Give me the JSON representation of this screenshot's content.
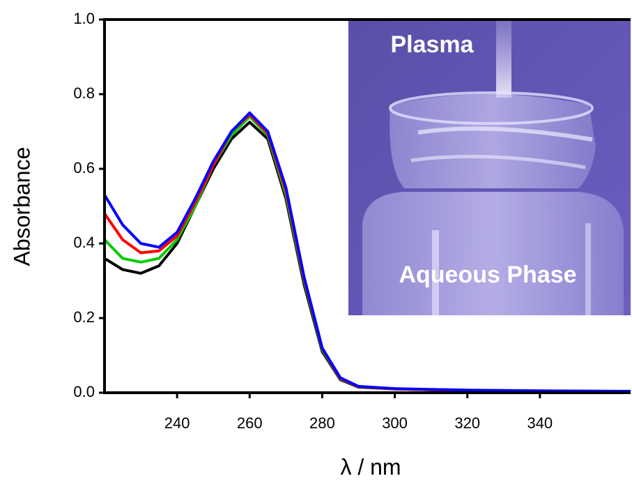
{
  "chart_data": {
    "type": "line",
    "x_label": "λ / nm",
    "y_label": "Absorbance",
    "x": [
      220,
      225,
      230,
      235,
      240,
      245,
      250,
      255,
      260,
      265,
      270,
      275,
      280,
      285,
      290,
      300,
      320,
      340,
      365
    ],
    "series": [
      {
        "color": "#000000",
        "values": [
          0.36,
          0.33,
          0.32,
          0.34,
          0.4,
          0.5,
          0.6,
          0.68,
          0.725,
          0.68,
          0.52,
          0.29,
          0.11,
          0.035,
          0.015,
          0.01,
          0.006,
          0.004,
          0.003
        ]
      },
      {
        "color": "#00cc00",
        "values": [
          0.41,
          0.36,
          0.35,
          0.36,
          0.41,
          0.5,
          0.61,
          0.69,
          0.74,
          0.69,
          0.53,
          0.3,
          0.115,
          0.037,
          0.016,
          0.01,
          0.006,
          0.004,
          0.003
        ]
      },
      {
        "color": "#ff0000",
        "values": [
          0.48,
          0.41,
          0.375,
          0.38,
          0.42,
          0.51,
          0.61,
          0.7,
          0.745,
          0.695,
          0.54,
          0.305,
          0.118,
          0.038,
          0.016,
          0.01,
          0.006,
          0.004,
          0.003
        ]
      },
      {
        "color": "#0000ff",
        "values": [
          0.53,
          0.45,
          0.4,
          0.39,
          0.43,
          0.52,
          0.62,
          0.7,
          0.75,
          0.7,
          0.55,
          0.31,
          0.12,
          0.04,
          0.017,
          0.011,
          0.007,
          0.005,
          0.004
        ]
      }
    ],
    "xlim": [
      220,
      365
    ],
    "ylim": [
      0,
      1
    ],
    "xticks": [
      240,
      260,
      280,
      300,
      320,
      340
    ],
    "yticks": [
      {
        "value": 0,
        "label": "0.0"
      },
      0.2,
      0.4,
      0.6,
      0.8,
      {
        "value": 1,
        "label": "1.0"
      }
    ],
    "annotations": [
      "Plasma",
      "Aqueous Phase"
    ]
  }
}
